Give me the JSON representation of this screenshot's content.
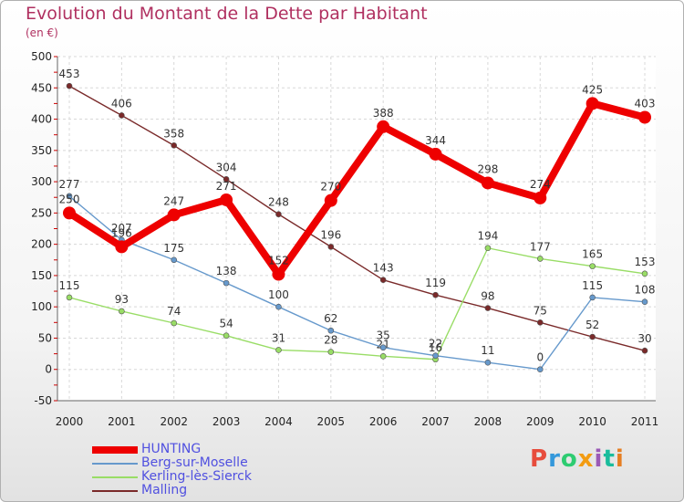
{
  "title": "Evolution du Montant de la Dette par Habitant",
  "subtitle": "(en €)",
  "logo": {
    "text": "Proxiti",
    "colors": [
      "#e74c3c",
      "#3498db",
      "#2ecc71",
      "#f39c12",
      "#9b59b6",
      "#1abc9c",
      "#e67e22"
    ]
  },
  "chart_data": {
    "type": "line",
    "categories": [
      "2000",
      "2001",
      "2002",
      "2003",
      "2004",
      "2005",
      "2006",
      "2007",
      "2008",
      "2009",
      "2010",
      "2011"
    ],
    "ylim": [
      -50,
      500
    ],
    "yticks": [
      -50,
      0,
      50,
      100,
      150,
      200,
      250,
      300,
      350,
      400,
      450,
      500
    ],
    "grid": true,
    "legend_position": "bottom-left",
    "series": [
      {
        "name": "Malling",
        "color": "#7a2a2a",
        "values": [
          453,
          406,
          358,
          304,
          248,
          196,
          143,
          119,
          98,
          75,
          52,
          30
        ]
      },
      {
        "name": "Kerling-lès-Sierck",
        "color": "#99dd66",
        "values": [
          115,
          93,
          74,
          54,
          31,
          28,
          21,
          16,
          194,
          177,
          165,
          153
        ]
      },
      {
        "name": "Berg-sur-Moselle",
        "color": "#6699cc",
        "values": [
          277,
          207,
          175,
          138,
          100,
          62,
          35,
          22,
          11,
          0,
          115,
          108
        ]
      },
      {
        "name": "HUNTING",
        "color": "#ee0000",
        "values": [
          250,
          196,
          247,
          271,
          152,
          270,
          388,
          344,
          298,
          274,
          425,
          403
        ]
      }
    ]
  }
}
